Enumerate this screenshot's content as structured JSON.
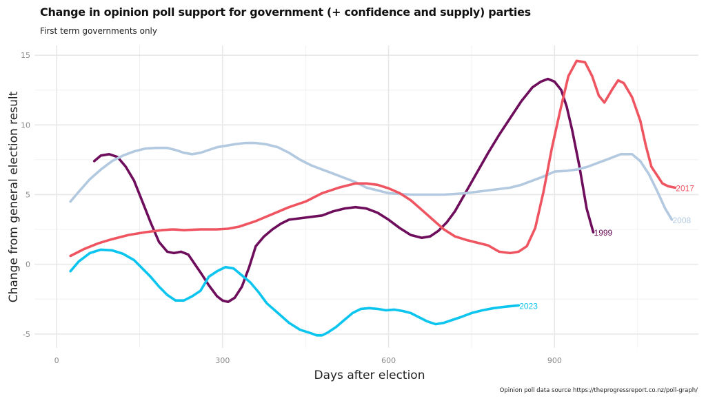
{
  "chart_data": {
    "type": "line",
    "title": "Change in opinion poll support for government (+ confidence and supply) parties",
    "subtitle": "First term governments only",
    "caption": "Opinion poll data source https://theprogressreport.co.nz/poll-graph/",
    "xlabel": "Days after election",
    "ylabel": "Change from general election result",
    "xlim": [
      -40,
      1160
    ],
    "ylim": [
      -6,
      15.7
    ],
    "xticks": [
      0,
      300,
      600,
      900
    ],
    "yticks": [
      -5,
      0,
      5,
      10,
      15
    ],
    "x_minor": [
      150,
      450,
      750,
      1050
    ],
    "y_minor": [
      -2.5,
      2.5,
      7.5,
      12.5
    ],
    "grid": true,
    "legend": "direct-labels-at-line-ends",
    "series": [
      {
        "name": "1999",
        "color": "#6e0d5b",
        "x": [
          68,
          80,
          95,
          110,
          125,
          140,
          155,
          170,
          185,
          200,
          212,
          225,
          238,
          250,
          262,
          275,
          290,
          300,
          310,
          322,
          335,
          348,
          360,
          375,
          390,
          405,
          420,
          440,
          460,
          480,
          500,
          520,
          540,
          560,
          580,
          600,
          620,
          640,
          660,
          675,
          690,
          705,
          720,
          740,
          760,
          780,
          800,
          820,
          840,
          860,
          875,
          888,
          900,
          912,
          922,
          932,
          945,
          958,
          970
        ],
        "y": [
          7.4,
          7.8,
          7.9,
          7.7,
          7.0,
          6.0,
          4.5,
          3.0,
          1.6,
          0.9,
          0.8,
          0.9,
          0.7,
          0.0,
          -0.7,
          -1.5,
          -2.3,
          -2.6,
          -2.7,
          -2.4,
          -1.6,
          -0.2,
          1.3,
          2.0,
          2.5,
          2.9,
          3.2,
          3.3,
          3.4,
          3.5,
          3.8,
          4.0,
          4.1,
          4.0,
          3.7,
          3.2,
          2.6,
          2.1,
          1.9,
          2.0,
          2.4,
          3.0,
          3.8,
          5.2,
          6.6,
          8.0,
          9.3,
          10.5,
          11.7,
          12.7,
          13.1,
          13.3,
          13.1,
          12.5,
          11.3,
          9.6,
          7.0,
          4.0,
          2.3
        ]
      },
      {
        "name": "2008",
        "color": "#b3c9e0",
        "x": [
          25,
          40,
          60,
          80,
          100,
          120,
          140,
          160,
          180,
          200,
          215,
          230,
          245,
          260,
          275,
          290,
          305,
          320,
          340,
          360,
          380,
          400,
          420,
          440,
          460,
          480,
          500,
          520,
          540,
          560,
          580,
          600,
          620,
          640,
          660,
          680,
          700,
          720,
          740,
          760,
          780,
          800,
          820,
          840,
          860,
          880,
          900,
          920,
          940,
          960,
          980,
          1000,
          1020,
          1040,
          1055,
          1070,
          1085,
          1100,
          1112
        ],
        "y": [
          4.5,
          5.2,
          6.1,
          6.8,
          7.4,
          7.8,
          8.1,
          8.3,
          8.35,
          8.35,
          8.2,
          8.0,
          7.9,
          8.0,
          8.2,
          8.4,
          8.5,
          8.6,
          8.7,
          8.7,
          8.6,
          8.4,
          8.0,
          7.5,
          7.1,
          6.8,
          6.5,
          6.2,
          5.9,
          5.5,
          5.3,
          5.1,
          5.05,
          5.0,
          5.0,
          5.0,
          5.0,
          5.05,
          5.1,
          5.2,
          5.3,
          5.4,
          5.5,
          5.7,
          6.0,
          6.3,
          6.65,
          6.7,
          6.8,
          7.0,
          7.3,
          7.6,
          7.9,
          7.9,
          7.4,
          6.5,
          5.3,
          4.0,
          3.2
        ]
      },
      {
        "name": "2017",
        "color": "#ee5561",
        "x": [
          25,
          50,
          75,
          100,
          130,
          160,
          190,
          210,
          230,
          260,
          290,
          310,
          330,
          360,
          390,
          420,
          450,
          480,
          510,
          540,
          560,
          580,
          600,
          620,
          640,
          660,
          680,
          700,
          720,
          740,
          760,
          780,
          800,
          820,
          835,
          850,
          865,
          880,
          895,
          910,
          925,
          940,
          955,
          968,
          980,
          990,
          1005,
          1015,
          1025,
          1040,
          1055,
          1065,
          1075,
          1085,
          1095,
          1105,
          1118
        ],
        "y": [
          0.6,
          1.1,
          1.5,
          1.8,
          2.1,
          2.3,
          2.45,
          2.5,
          2.45,
          2.5,
          2.5,
          2.55,
          2.7,
          3.1,
          3.6,
          4.1,
          4.5,
          5.1,
          5.5,
          5.8,
          5.8,
          5.7,
          5.45,
          5.1,
          4.6,
          3.9,
          3.2,
          2.5,
          2.0,
          1.75,
          1.55,
          1.35,
          0.9,
          0.8,
          0.9,
          1.3,
          2.6,
          5.2,
          8.3,
          11.0,
          13.5,
          14.6,
          14.5,
          13.5,
          12.1,
          11.6,
          12.6,
          13.2,
          13.0,
          12.0,
          10.3,
          8.5,
          7.0,
          6.4,
          5.8,
          5.6,
          5.5
        ]
      },
      {
        "name": "2023",
        "color": "#0bc5ef",
        "x": [
          25,
          40,
          60,
          80,
          100,
          120,
          140,
          155,
          170,
          185,
          200,
          215,
          230,
          245,
          260,
          275,
          290,
          305,
          320,
          335,
          350,
          365,
          380,
          400,
          420,
          440,
          460,
          470,
          480,
          490,
          505,
          520,
          535,
          550,
          565,
          580,
          595,
          610,
          625,
          640,
          655,
          670,
          685,
          700,
          715,
          730,
          750,
          770,
          790,
          810,
          835
        ],
        "y": [
          -0.5,
          0.2,
          0.8,
          1.05,
          1.0,
          0.75,
          0.3,
          -0.3,
          -0.9,
          -1.6,
          -2.2,
          -2.6,
          -2.6,
          -2.3,
          -1.9,
          -0.9,
          -0.5,
          -0.2,
          -0.3,
          -0.8,
          -1.3,
          -2.0,
          -2.8,
          -3.5,
          -4.2,
          -4.7,
          -4.95,
          -5.1,
          -5.1,
          -4.9,
          -4.5,
          -4.0,
          -3.5,
          -3.2,
          -3.15,
          -3.2,
          -3.3,
          -3.25,
          -3.35,
          -3.5,
          -3.8,
          -4.1,
          -4.3,
          -4.2,
          -4.0,
          -3.8,
          -3.5,
          -3.3,
          -3.15,
          -3.05,
          -2.95
        ]
      }
    ]
  }
}
